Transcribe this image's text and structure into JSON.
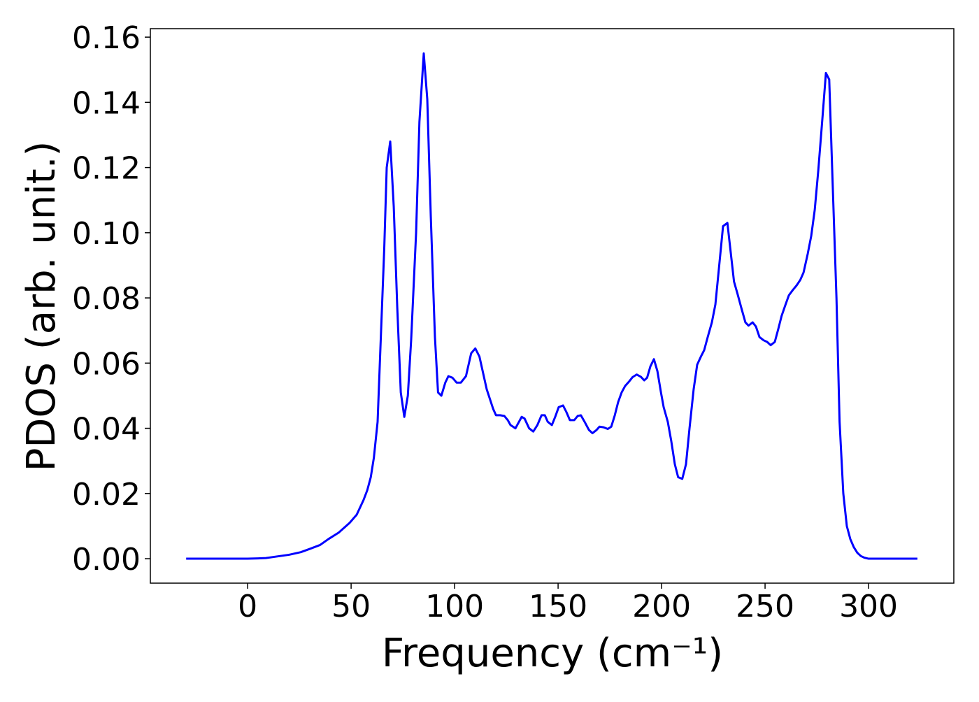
{
  "chart_data": {
    "type": "line",
    "x_label": "Frequency (cm⁻¹)",
    "y_label": "PDOS (arb. unit.)",
    "x": [
      -29.7,
      -20,
      -10,
      0,
      5,
      8.8,
      15.5,
      20,
      25.7,
      30,
      35,
      39,
      44,
      49.3,
      52.7,
      56,
      57.8,
      59.5,
      61,
      62.8,
      64,
      66,
      67.2,
      68.9,
      70.6,
      72.3,
      74,
      75.7,
      77.4,
      79,
      81.4,
      83,
      85.1,
      86.8,
      88.5,
      90.5,
      92,
      93.6,
      95.5,
      97,
      99,
      101,
      103,
      105.5,
      108,
      110,
      112,
      115.5,
      118.6,
      120,
      122,
      124,
      125.7,
      127,
      129.4,
      132.4,
      133.8,
      136,
      138,
      140,
      142,
      143.6,
      145,
      147,
      148.6,
      150.3,
      152.4,
      154,
      155.7,
      157.8,
      159.5,
      161,
      162.8,
      164.9,
      166.6,
      168.6,
      170,
      172,
      174,
      175.7,
      177.4,
      179,
      180.7,
      182.4,
      184.5,
      186,
      188,
      190,
      191.6,
      193,
      194.6,
      196.3,
      198,
      199.7,
      201,
      203,
      204.7,
      206.4,
      208,
      210,
      211.8,
      213.5,
      215.5,
      217.2,
      219,
      220.6,
      222.3,
      224.3,
      226,
      227.7,
      229.7,
      231.8,
      233.4,
      235,
      236.8,
      238.5,
      240.5,
      242,
      244,
      245.6,
      247.3,
      249.3,
      251,
      252.7,
      254.7,
      256.4,
      258,
      259.8,
      261.5,
      263.5,
      265.2,
      267,
      268.6,
      270.6,
      272.3,
      274,
      275.7,
      277.7,
      279.4,
      281,
      282.4,
      284.5,
      286,
      287.8,
      289.5,
      291.2,
      292.9,
      294.6,
      296.3,
      298,
      300,
      310,
      323.6
    ],
    "series": [
      {
        "name": "PDOS",
        "color": "#0000ff",
        "values": [
          0,
          0,
          0,
          0,
          0.0001,
          0.0002,
          0.0008,
          0.0012,
          0.002,
          0.003,
          0.0042,
          0.006,
          0.008,
          0.011,
          0.0135,
          0.018,
          0.021,
          0.025,
          0.031,
          0.042,
          0.062,
          0.095,
          0.12,
          0.128,
          0.108,
          0.077,
          0.051,
          0.0435,
          0.05,
          0.067,
          0.1,
          0.134,
          0.155,
          0.141,
          0.105,
          0.068,
          0.051,
          0.05,
          0.054,
          0.056,
          0.0555,
          0.054,
          0.054,
          0.056,
          0.063,
          0.0645,
          0.062,
          0.052,
          0.046,
          0.044,
          0.044,
          0.0438,
          0.0425,
          0.041,
          0.04,
          0.0435,
          0.043,
          0.04,
          0.039,
          0.041,
          0.044,
          0.044,
          0.042,
          0.041,
          0.0435,
          0.0465,
          0.047,
          0.045,
          0.0425,
          0.0425,
          0.0438,
          0.044,
          0.042,
          0.0395,
          0.0385,
          0.0395,
          0.0405,
          0.0403,
          0.0398,
          0.0405,
          0.044,
          0.048,
          0.051,
          0.053,
          0.0545,
          0.0557,
          0.0565,
          0.0558,
          0.0547,
          0.0555,
          0.059,
          0.0612,
          0.0575,
          0.051,
          0.0465,
          0.042,
          0.036,
          0.029,
          0.025,
          0.0245,
          0.029,
          0.04,
          0.052,
          0.0595,
          0.062,
          0.064,
          0.068,
          0.0725,
          0.078,
          0.089,
          0.102,
          0.103,
          0.094,
          0.085,
          0.081,
          0.077,
          0.0725,
          0.0715,
          0.0725,
          0.0712,
          0.068,
          0.067,
          0.0665,
          0.0655,
          0.0665,
          0.0705,
          0.0745,
          0.0778,
          0.0808,
          0.0825,
          0.0838,
          0.0855,
          0.0878,
          0.0935,
          0.099,
          0.107,
          0.119,
          0.135,
          0.149,
          0.147,
          0.12,
          0.08,
          0.042,
          0.02,
          0.01,
          0.006,
          0.0035,
          0.0018,
          0.0008,
          0.0003,
          0,
          0,
          0
        ]
      }
    ],
    "xlim": [
      -47,
      341.2
    ],
    "ylim": [
      -0.0075,
      0.1626
    ],
    "xticks": [
      0,
      50,
      100,
      150,
      200,
      250,
      300
    ],
    "yticks": [
      {
        "value": 0,
        "label": "0.00"
      },
      0.02,
      0.04,
      0.06,
      0.08,
      {
        "value": 0.1,
        "label": "0.10"
      },
      0.12,
      0.14,
      0.16
    ],
    "grid": false
  }
}
